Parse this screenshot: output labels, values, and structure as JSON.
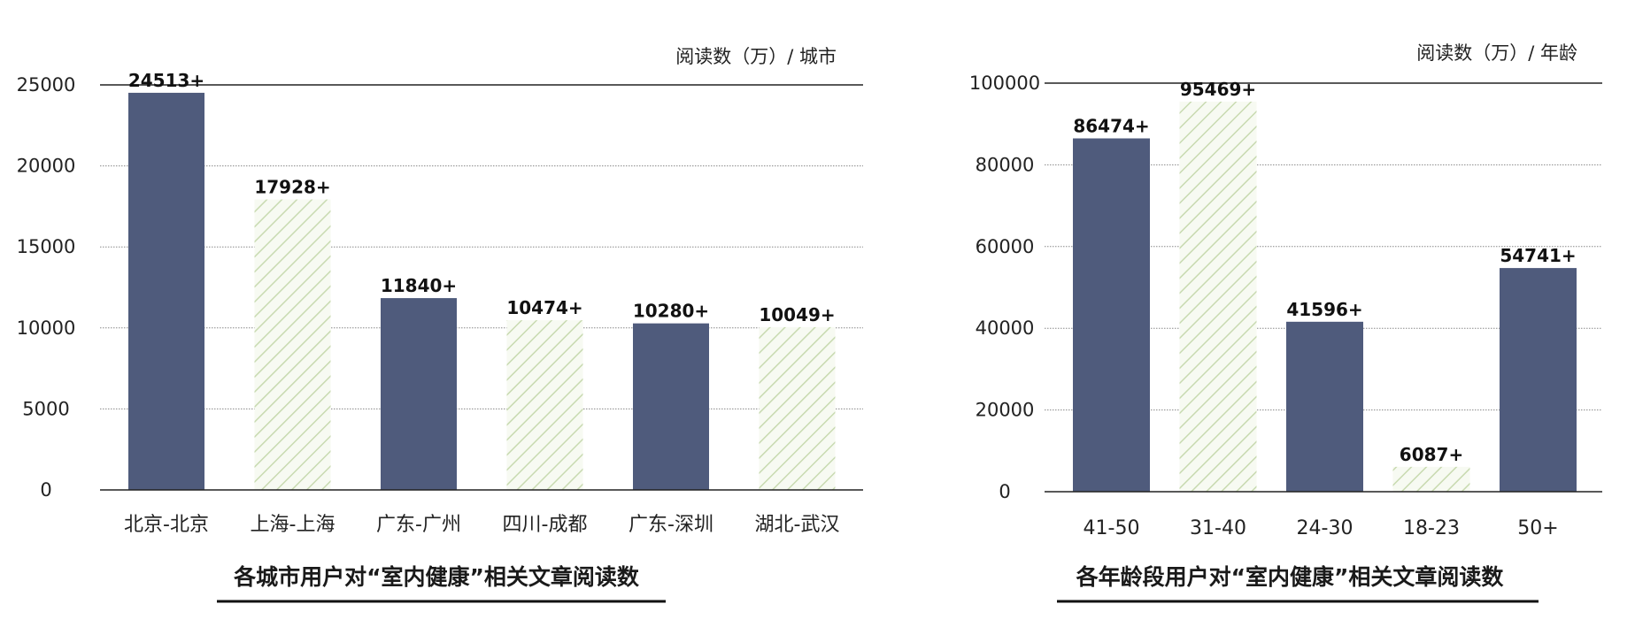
{
  "colors": {
    "solid": "#4f5b7c",
    "hatch": "#c8dab0",
    "axis": "#222222",
    "grid": "#888888",
    "text": "#222222"
  },
  "chart_data": [
    {
      "type": "bar",
      "title": "各城市用户对“室内健康”相关文章阅读数",
      "unit_label": "阅读数（万）/ 城市",
      "categories": [
        "北京-北京",
        "上海-上海",
        "广东-广州",
        "四川-成都",
        "广东-深圳",
        "湖北-武汉"
      ],
      "values": [
        24513,
        17928,
        11840,
        10474,
        10280,
        10049
      ],
      "value_labels": [
        "24513+",
        "17928+",
        "11840+",
        "10474+",
        "10280+",
        "10049+"
      ],
      "styles": [
        "solid",
        "hatch",
        "solid",
        "hatch",
        "solid",
        "hatch"
      ],
      "yticks": [
        0,
        5000,
        10000,
        15000,
        20000,
        25000
      ],
      "ylim": [
        0,
        25000
      ],
      "grid": true
    },
    {
      "type": "bar",
      "title": "各年龄段用户对“室内健康”相关文章阅读数",
      "unit_label": "阅读数（万）/ 年龄",
      "categories": [
        "41-50",
        "31-40",
        "24-30",
        "18-23",
        "50+"
      ],
      "values": [
        86474,
        95469,
        41596,
        6087,
        54741
      ],
      "value_labels": [
        "86474+",
        "95469+",
        "41596+",
        "6087+",
        "54741+"
      ],
      "styles": [
        "solid",
        "hatch",
        "solid",
        "hatch",
        "solid"
      ],
      "yticks": [
        0,
        20000,
        40000,
        60000,
        80000,
        100000
      ],
      "ylim": [
        0,
        100000
      ],
      "grid": true
    }
  ]
}
